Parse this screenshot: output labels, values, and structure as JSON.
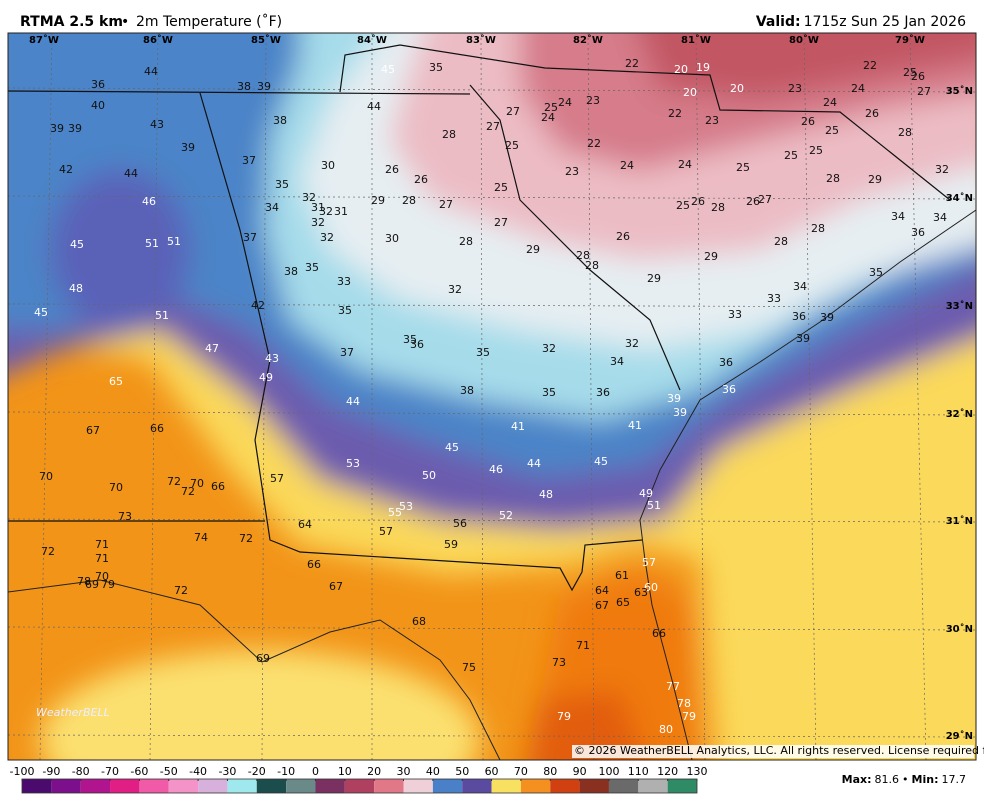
{
  "header": {
    "title": "RTMA 2.5 km",
    "separator": "•",
    "field": "2m Temperature (˚F)",
    "valid_label": "Valid:",
    "valid_time": "1715z Sun 25 Jan 2026"
  },
  "map": {
    "longitude_labels": [
      "87˚W",
      "86˚W",
      "85˚W",
      "84˚W",
      "83˚W",
      "82˚W",
      "81˚W",
      "80˚W",
      "79˚W"
    ],
    "latitude_labels": [
      "35˚N",
      "34˚N",
      "33˚N",
      "32˚N",
      "31˚N",
      "30˚N",
      "29˚N"
    ],
    "temperatures": [
      36,
      44,
      38,
      39,
      45,
      35,
      22,
      20,
      19,
      22,
      25,
      26,
      20,
      20,
      23,
      24,
      27,
      40,
      44,
      27,
      25,
      24,
      23,
      22,
      23,
      24,
      26,
      24,
      43,
      38,
      39,
      39,
      28,
      27,
      26,
      25,
      28,
      39,
      25,
      22,
      25,
      25,
      37,
      30,
      26,
      23,
      24,
      24,
      25,
      32,
      42,
      44,
      26,
      28,
      29,
      35,
      25,
      32,
      46,
      34,
      31,
      32,
      31,
      29,
      28,
      27,
      25,
      26,
      28,
      26,
      27,
      34,
      34,
      32,
      27,
      28,
      36,
      45,
      51,
      51,
      37,
      32,
      30,
      28,
      26,
      29,
      28,
      28,
      29,
      28,
      38,
      35,
      33,
      29,
      35,
      48,
      32,
      34,
      42,
      35,
      33,
      33,
      36,
      39,
      45,
      51,
      35,
      36,
      39,
      32,
      47,
      37,
      35,
      32,
      34,
      36,
      43,
      49,
      36,
      65,
      38,
      35,
      36,
      39,
      39,
      44,
      41,
      41,
      67,
      66,
      45,
      44,
      45,
      53,
      46,
      50,
      70,
      57,
      72,
      70,
      72,
      66,
      70,
      48,
      49,
      53,
      55,
      52,
      51,
      73,
      64,
      57,
      56,
      74,
      72,
      71,
      59,
      72,
      71,
      57,
      66,
      61,
      70,
      78,
      69,
      79,
      67,
      64,
      60,
      63,
      72,
      67,
      65,
      68,
      66,
      71,
      69,
      73,
      75,
      77,
      78,
      79,
      79,
      80
    ],
    "copyright": "© 2026 WeatherBELL Analytics, LLC. All rights reserved. License required for commercial distribution.",
    "logo": "WeatherBELL"
  },
  "colorbar": {
    "ticks": [
      -100,
      -90,
      -80,
      -70,
      -60,
      -50,
      -40,
      -30,
      -20,
      -10,
      0,
      10,
      20,
      30,
      40,
      50,
      60,
      70,
      80,
      90,
      100,
      110,
      120,
      130
    ],
    "colors": [
      "#4b0a6e",
      "#7b0f8c",
      "#b0148e",
      "#e01e84",
      "#f05aa6",
      "#f493c8",
      "#d8b0dc",
      "#9ee8ee",
      "#1b4d4d",
      "#6a8a8a",
      "#7a3060",
      "#b04060",
      "#e07888",
      "#f0d0d8",
      "#4a80c8",
      "#5a4aa0",
      "#f8e060",
      "#f49020",
      "#d04010",
      "#8a3020",
      "#6a6a6a",
      "#b0b0b0",
      "#2f8a66"
    ]
  },
  "stats": {
    "max_label": "Max:",
    "max": 81.6,
    "separator": "•",
    "min_label": "Min:",
    "min": 17.7
  }
}
